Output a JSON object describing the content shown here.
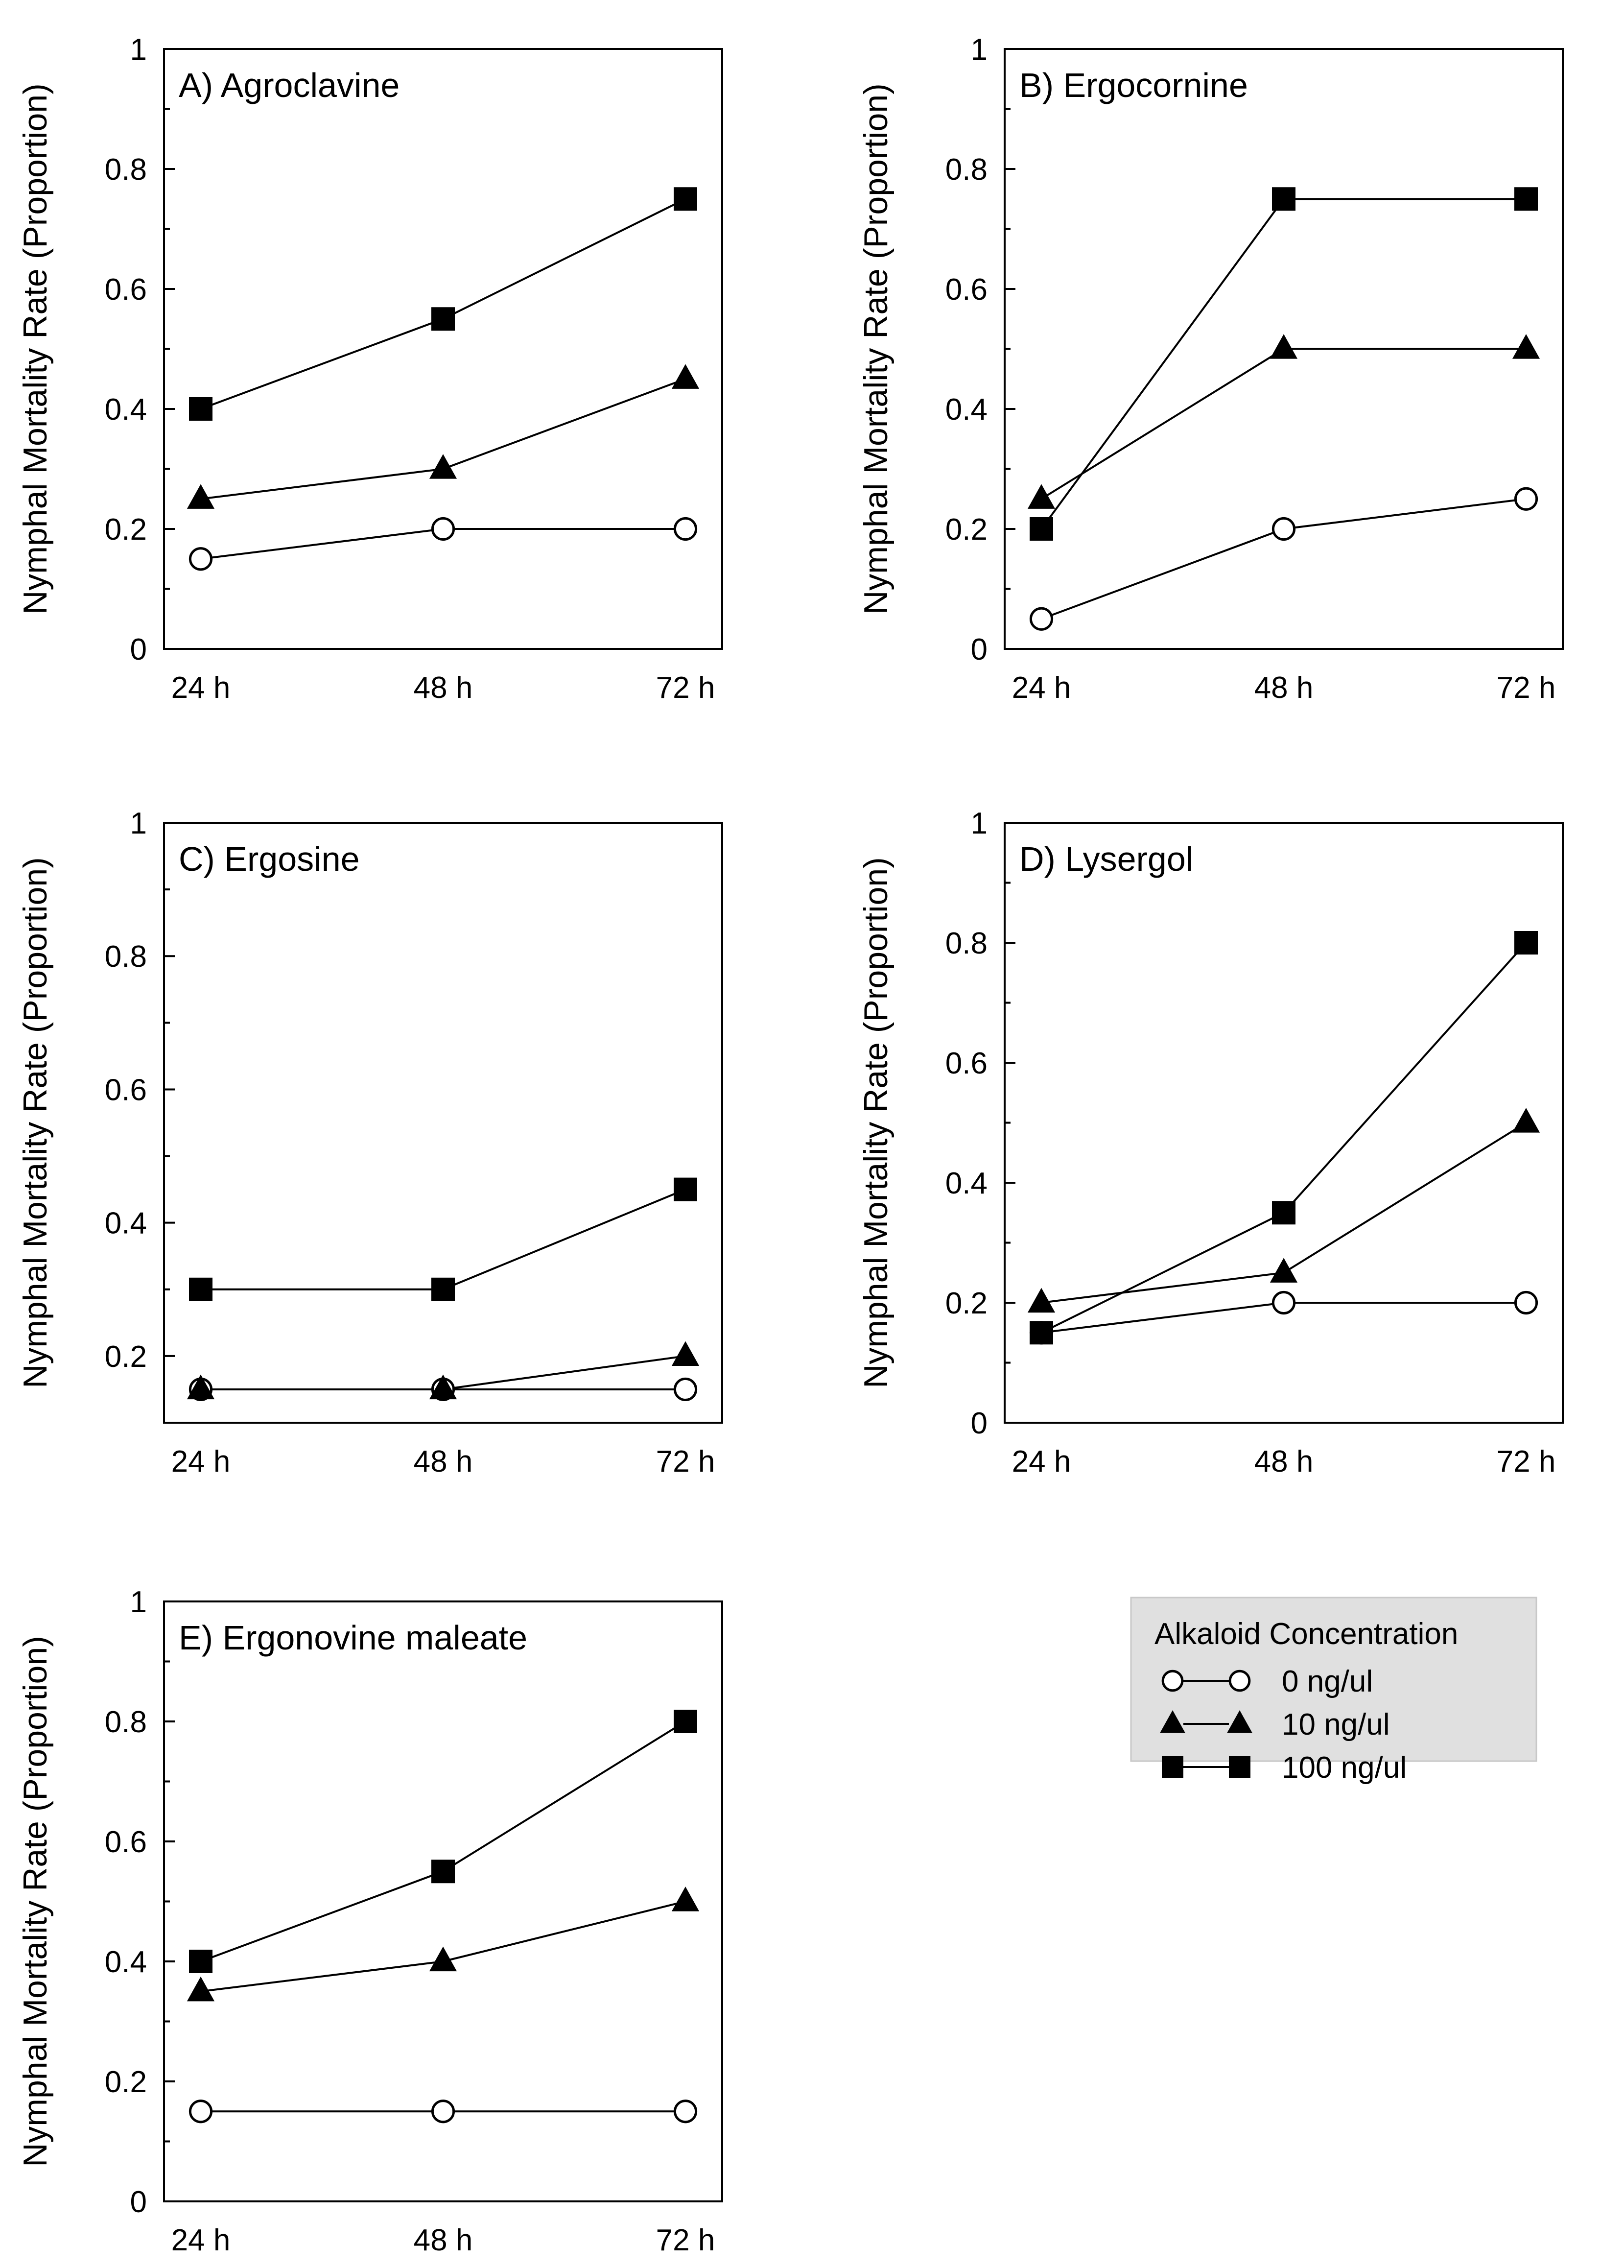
{
  "chart_data": [
    {
      "type": "line",
      "title": "A) Agroclavine",
      "xlabel": "",
      "ylabel": "Nymphal Mortality Rate (Proportion)",
      "categories": [
        "24 h",
        "48 h",
        "72 h"
      ],
      "ylim": [
        0,
        1
      ],
      "yticks": [
        "0",
        "0.2",
        "0.4",
        "0.6",
        "0.8",
        "1"
      ],
      "series": [
        {
          "name": "0 ng/ul",
          "marker": "circle-open",
          "values": [
            0.15,
            0.2,
            0.2
          ]
        },
        {
          "name": "10 ng/ul",
          "marker": "triangle-filled",
          "values": [
            0.25,
            0.3,
            0.45
          ]
        },
        {
          "name": "100 ng/ul",
          "marker": "square-filled",
          "values": [
            0.4,
            0.55,
            0.75
          ]
        }
      ]
    },
    {
      "type": "line",
      "title": "B) Ergocornine",
      "xlabel": "",
      "ylabel": "Nymphal Mortality Rate (Proportion)",
      "categories": [
        "24 h",
        "48 h",
        "72 h"
      ],
      "ylim": [
        0,
        1
      ],
      "yticks": [
        "0",
        "0.2",
        "0.4",
        "0.6",
        "0.8",
        "1"
      ],
      "series": [
        {
          "name": "0 ng/ul",
          "marker": "circle-open",
          "values": [
            0.05,
            0.2,
            0.25
          ]
        },
        {
          "name": "10 ng/ul",
          "marker": "triangle-filled",
          "values": [
            0.25,
            0.5,
            0.5
          ]
        },
        {
          "name": "100 ng/ul",
          "marker": "square-filled",
          "values": [
            0.2,
            0.75,
            0.75
          ]
        }
      ]
    },
    {
      "type": "line",
      "title": "C) Ergosine",
      "xlabel": "",
      "ylabel": "Nymphal Mortality Rate (Proportion)",
      "categories": [
        "24 h",
        "48 h",
        "72 h"
      ],
      "ylim": [
        0.1,
        1
      ],
      "yticks": [
        "0.2",
        "0.4",
        "0.6",
        "0.8",
        "1"
      ],
      "series": [
        {
          "name": "0 ng/ul",
          "marker": "circle-open",
          "values": [
            0.15,
            0.15,
            0.15
          ]
        },
        {
          "name": "10 ng/ul",
          "marker": "triangle-filled",
          "values": [
            0.15,
            0.15,
            0.2
          ]
        },
        {
          "name": "100 ng/ul",
          "marker": "square-filled",
          "values": [
            0.3,
            0.3,
            0.45
          ]
        }
      ]
    },
    {
      "type": "line",
      "title": "D) Lysergol",
      "xlabel": "",
      "ylabel": "Nymphal Mortality Rate (Proportion)",
      "categories": [
        "24 h",
        "48 h",
        "72 h"
      ],
      "ylim": [
        0,
        1
      ],
      "yticks": [
        "0",
        "0.2",
        "0.4",
        "0.6",
        "0.8",
        "1"
      ],
      "series": [
        {
          "name": "0 ng/ul",
          "marker": "circle-open",
          "values": [
            0.15,
            0.2,
            0.2
          ]
        },
        {
          "name": "10 ng/ul",
          "marker": "triangle-filled",
          "values": [
            0.2,
            0.25,
            0.5
          ]
        },
        {
          "name": "100 ng/ul",
          "marker": "square-filled",
          "values": [
            0.15,
            0.35,
            0.8
          ]
        }
      ]
    },
    {
      "type": "line",
      "title": "E) Ergonovine maleate",
      "xlabel": "",
      "ylabel": "Nymphal Mortality Rate (Proportion)",
      "categories": [
        "24 h",
        "48 h",
        "72 h"
      ],
      "ylim": [
        0,
        1
      ],
      "yticks": [
        "0",
        "0.2",
        "0.4",
        "0.6",
        "0.8",
        "1"
      ],
      "series": [
        {
          "name": "0 ng/ul",
          "marker": "circle-open",
          "values": [
            0.15,
            0.15,
            0.15
          ]
        },
        {
          "name": "10 ng/ul",
          "marker": "triangle-filled",
          "values": [
            0.35,
            0.4,
            0.5
          ]
        },
        {
          "name": "100 ng/ul",
          "marker": "square-filled",
          "values": [
            0.4,
            0.55,
            0.8
          ]
        }
      ]
    }
  ],
  "legend": {
    "title": "Alkaloid Concentration",
    "entries": [
      {
        "label": "0 ng/ul",
        "marker": "circle-open"
      },
      {
        "label": "10 ng/ul",
        "marker": "triangle-filled"
      },
      {
        "label": "100 ng/ul",
        "marker": "square-filled"
      }
    ],
    "background": "#e0e0e0"
  },
  "colors": {
    "line": "#000000",
    "marker_fill": "#000000",
    "open_marker_fill": "#ffffff"
  }
}
